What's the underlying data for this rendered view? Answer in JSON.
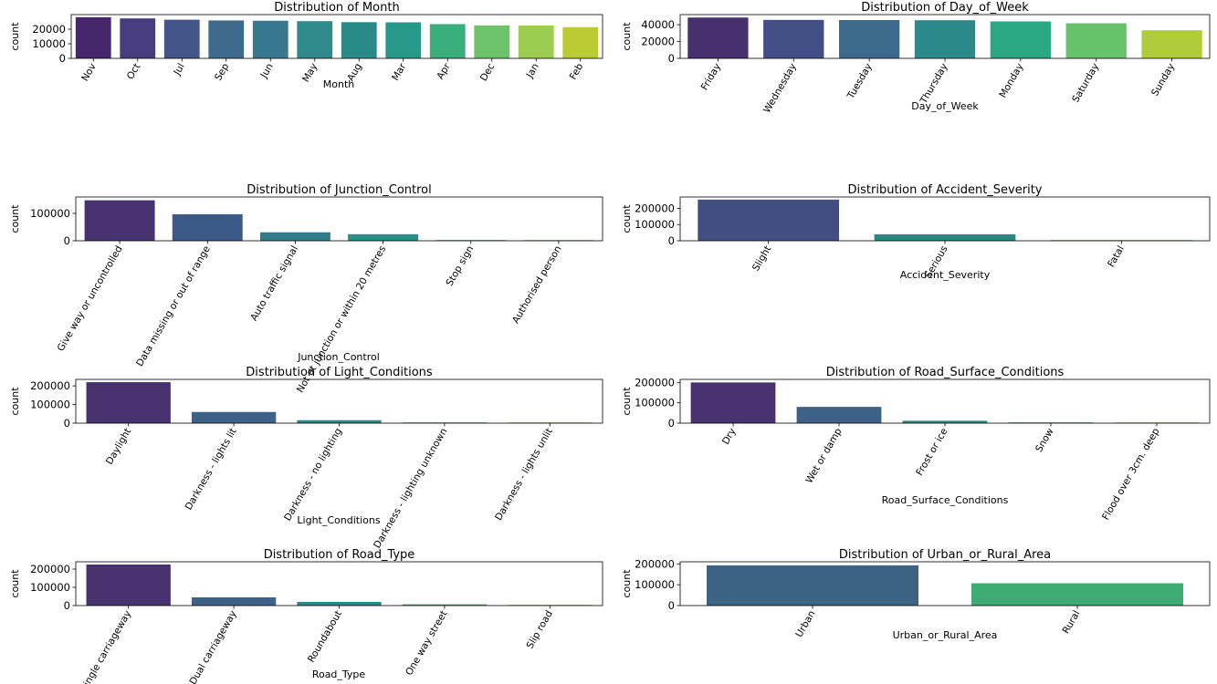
{
  "chart_data": [
    {
      "type": "bar",
      "title": "Distribution of Month",
      "xlabel": "Month",
      "ylabel": "count",
      "categories": [
        "Nov",
        "Oct",
        "Jul",
        "Sep",
        "Jun",
        "May",
        "Aug",
        "Mar",
        "Apr",
        "Dec",
        "Jan",
        "Feb"
      ],
      "values": [
        28200,
        27400,
        26500,
        26000,
        25800,
        25500,
        24800,
        24700,
        23500,
        22600,
        22500,
        21400
      ],
      "yticks": [
        0,
        10000,
        20000
      ],
      "ylim": [
        0,
        30000
      ],
      "colors": [
        "#46266c",
        "#483d7f",
        "#44558a",
        "#3e6b8d",
        "#38788e",
        "#30898d",
        "#298a88",
        "#26998a",
        "#3bae7e",
        "#6dc36a",
        "#9ccc50",
        "#bccb34"
      ]
    },
    {
      "type": "bar",
      "title": "Distribution of Day_of_Week",
      "xlabel": "Day_of_Week",
      "ylabel": "count",
      "categories": [
        "Friday",
        "Wednesday",
        "Tuesday",
        "Thursday",
        "Monday",
        "Saturday",
        "Sunday"
      ],
      "values": [
        48500,
        45700,
        45500,
        45300,
        43900,
        41700,
        33400
      ],
      "yticks": [
        0,
        20000,
        40000
      ],
      "ylim": [
        0,
        52000
      ],
      "colors": [
        "#46306e",
        "#424f87",
        "#3b6a8c",
        "#2b898c",
        "#2aa784",
        "#66c36a",
        "#b2cb3a"
      ]
    },
    {
      "type": "bar",
      "title": "Distribution of Junction_Control",
      "xlabel": "Junction_Control",
      "ylabel": "count",
      "categories": [
        "Give way or uncontrolled",
        "Data missing or out of range",
        "Auto traffic signal",
        "Not at junction or within 20 metres",
        "Stop sign",
        "Authorised person"
      ],
      "values": [
        148000,
        97000,
        31000,
        24000,
        1500,
        300
      ],
      "yticks": [
        0,
        100000
      ],
      "ylim": [
        0,
        160000
      ],
      "colors": [
        "#47326f",
        "#3c5a88",
        "#2f7d8b",
        "#2b8f88",
        "#3aa17f",
        "#7ebf5d"
      ]
    },
    {
      "type": "bar",
      "title": "Distribution of Accident_Severity",
      "xlabel": "Accident_Severity",
      "ylabel": "count",
      "categories": [
        "Slight",
        "Serious",
        "Fatal"
      ],
      "values": [
        254000,
        40000,
        4000
      ],
      "yticks": [
        0,
        100000,
        200000
      ],
      "ylim": [
        0,
        270000
      ],
      "colors": [
        "#434e80",
        "#2e8682",
        "#5db66b"
      ]
    },
    {
      "type": "bar",
      "title": "Distribution of Light_Conditions",
      "xlabel": "Light_Conditions",
      "ylabel": "count",
      "categories": [
        "Daylight",
        "Darkness - lights lit",
        "Darkness - no lighting",
        "Darkness - lighting unknown",
        "Darkness - lights unlit"
      ],
      "values": [
        220000,
        60000,
        16000,
        3000,
        1500
      ],
      "yticks": [
        0,
        100000,
        200000
      ],
      "ylim": [
        0,
        235000
      ],
      "colors": [
        "#47326f",
        "#3e6187",
        "#2b8a88",
        "#4aaa78",
        "#93c45a"
      ]
    },
    {
      "type": "bar",
      "title": "Distribution of Road_Surface_Conditions",
      "xlabel": "Road_Surface_Conditions",
      "ylabel": "count",
      "categories": [
        "Dry",
        "Wet or damp",
        "Frost or ice",
        "Snow",
        "Flood over 3cm. deep"
      ],
      "values": [
        200000,
        80000,
        12000,
        4000,
        500
      ],
      "yticks": [
        0,
        100000,
        200000
      ],
      "ylim": [
        0,
        215000
      ],
      "colors": [
        "#47326f",
        "#3e6187",
        "#2b8a88",
        "#4aaa78",
        "#93c45a"
      ]
    },
    {
      "type": "bar",
      "title": "Distribution of Road_Type",
      "xlabel": "Road_Type",
      "ylabel": "count",
      "categories": [
        "Single carriageway",
        "Dual carriageway",
        "Roundabout",
        "One way street",
        "Slip road"
      ],
      "values": [
        225000,
        45000,
        20000,
        7000,
        2000
      ],
      "yticks": [
        0,
        100000,
        200000
      ],
      "ylim": [
        0,
        240000
      ],
      "colors": [
        "#47326f",
        "#3e6187",
        "#2b8a88",
        "#4aaa78",
        "#93c45a"
      ]
    },
    {
      "type": "bar",
      "title": "Distribution of Urban_or_Rural_Area",
      "xlabel": "Urban_or_Rural_Area",
      "ylabel": "count",
      "categories": [
        "Urban",
        "Rural"
      ],
      "values": [
        193000,
        107000
      ],
      "yticks": [
        0,
        100000,
        200000
      ],
      "ylim": [
        0,
        210000
      ],
      "colors": [
        "#3d6382",
        "#3fab74"
      ]
    }
  ]
}
